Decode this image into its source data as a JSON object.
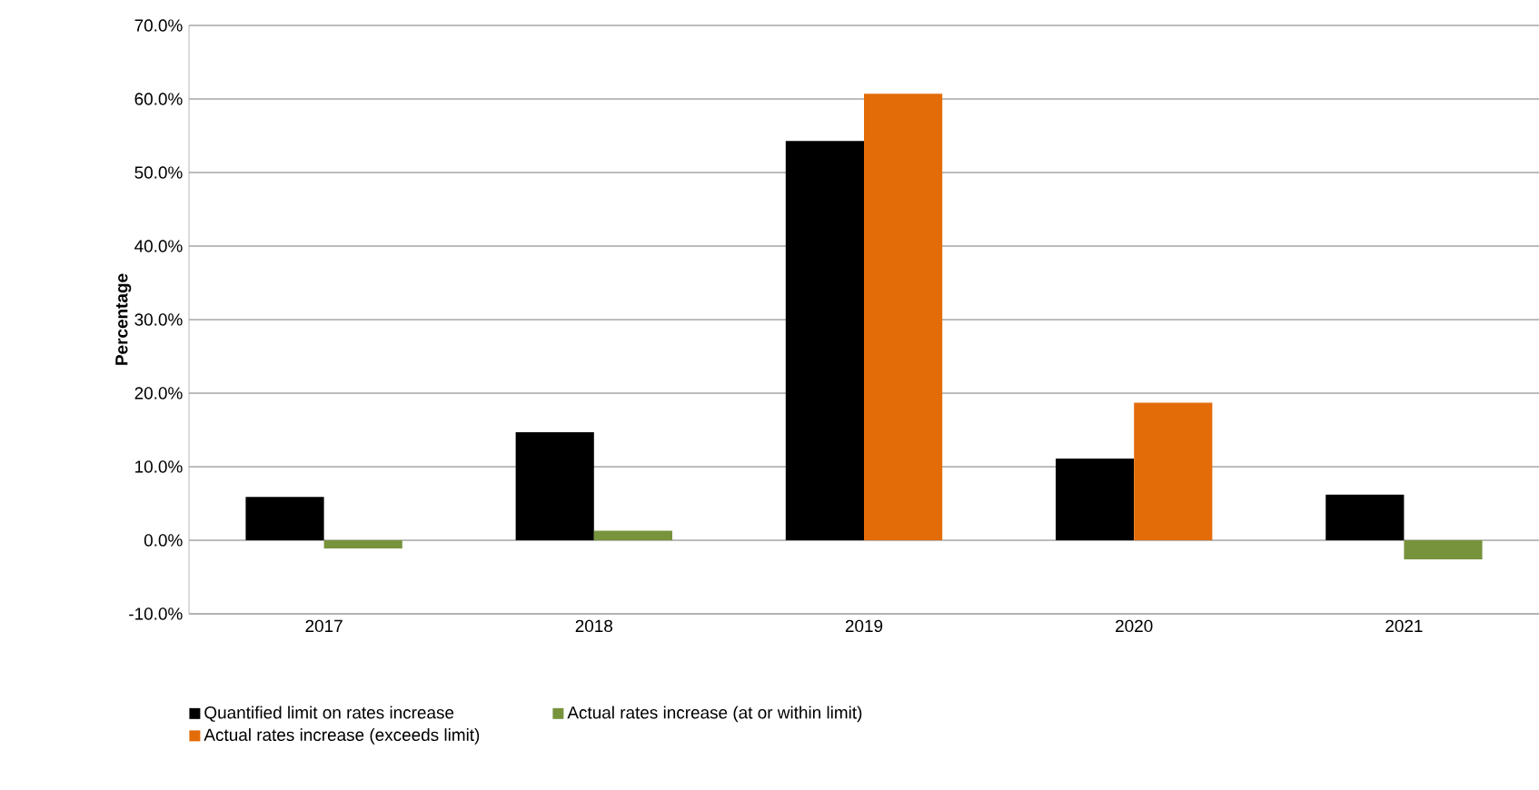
{
  "chart_data": {
    "type": "bar",
    "ylabel": "Percentage",
    "categories": [
      "2017",
      "2018",
      "2019",
      "2020",
      "2021"
    ],
    "series": [
      {
        "name": "Quantified limit on rates increase",
        "color": "#000000",
        "values": [
          5.9,
          14.7,
          54.3,
          11.1,
          6.2
        ]
      },
      {
        "name": "Actual rates increase (at or within limit)",
        "color": "#77933c",
        "values": [
          -1.1,
          1.3,
          null,
          null,
          -2.6
        ]
      },
      {
        "name": "Actual rates increase (exceeds limit)",
        "color": "#e36c09",
        "values": [
          null,
          null,
          60.7,
          18.7,
          null
        ]
      }
    ],
    "ylim": [
      -10,
      70
    ],
    "yticks": [
      {
        "value": -10,
        "label": "-10.0%"
      },
      {
        "value": 0,
        "label": "0.0%"
      },
      {
        "value": 10,
        "label": "10.0%"
      },
      {
        "value": 20,
        "label": "20.0%"
      },
      {
        "value": 30,
        "label": "30.0%"
      },
      {
        "value": 40,
        "label": "40.0%"
      },
      {
        "value": 50,
        "label": "50.0%"
      },
      {
        "value": 60,
        "label": "60.0%"
      },
      {
        "value": 70,
        "label": "70.0%"
      }
    ],
    "grid": "y",
    "legend": "bottom"
  }
}
